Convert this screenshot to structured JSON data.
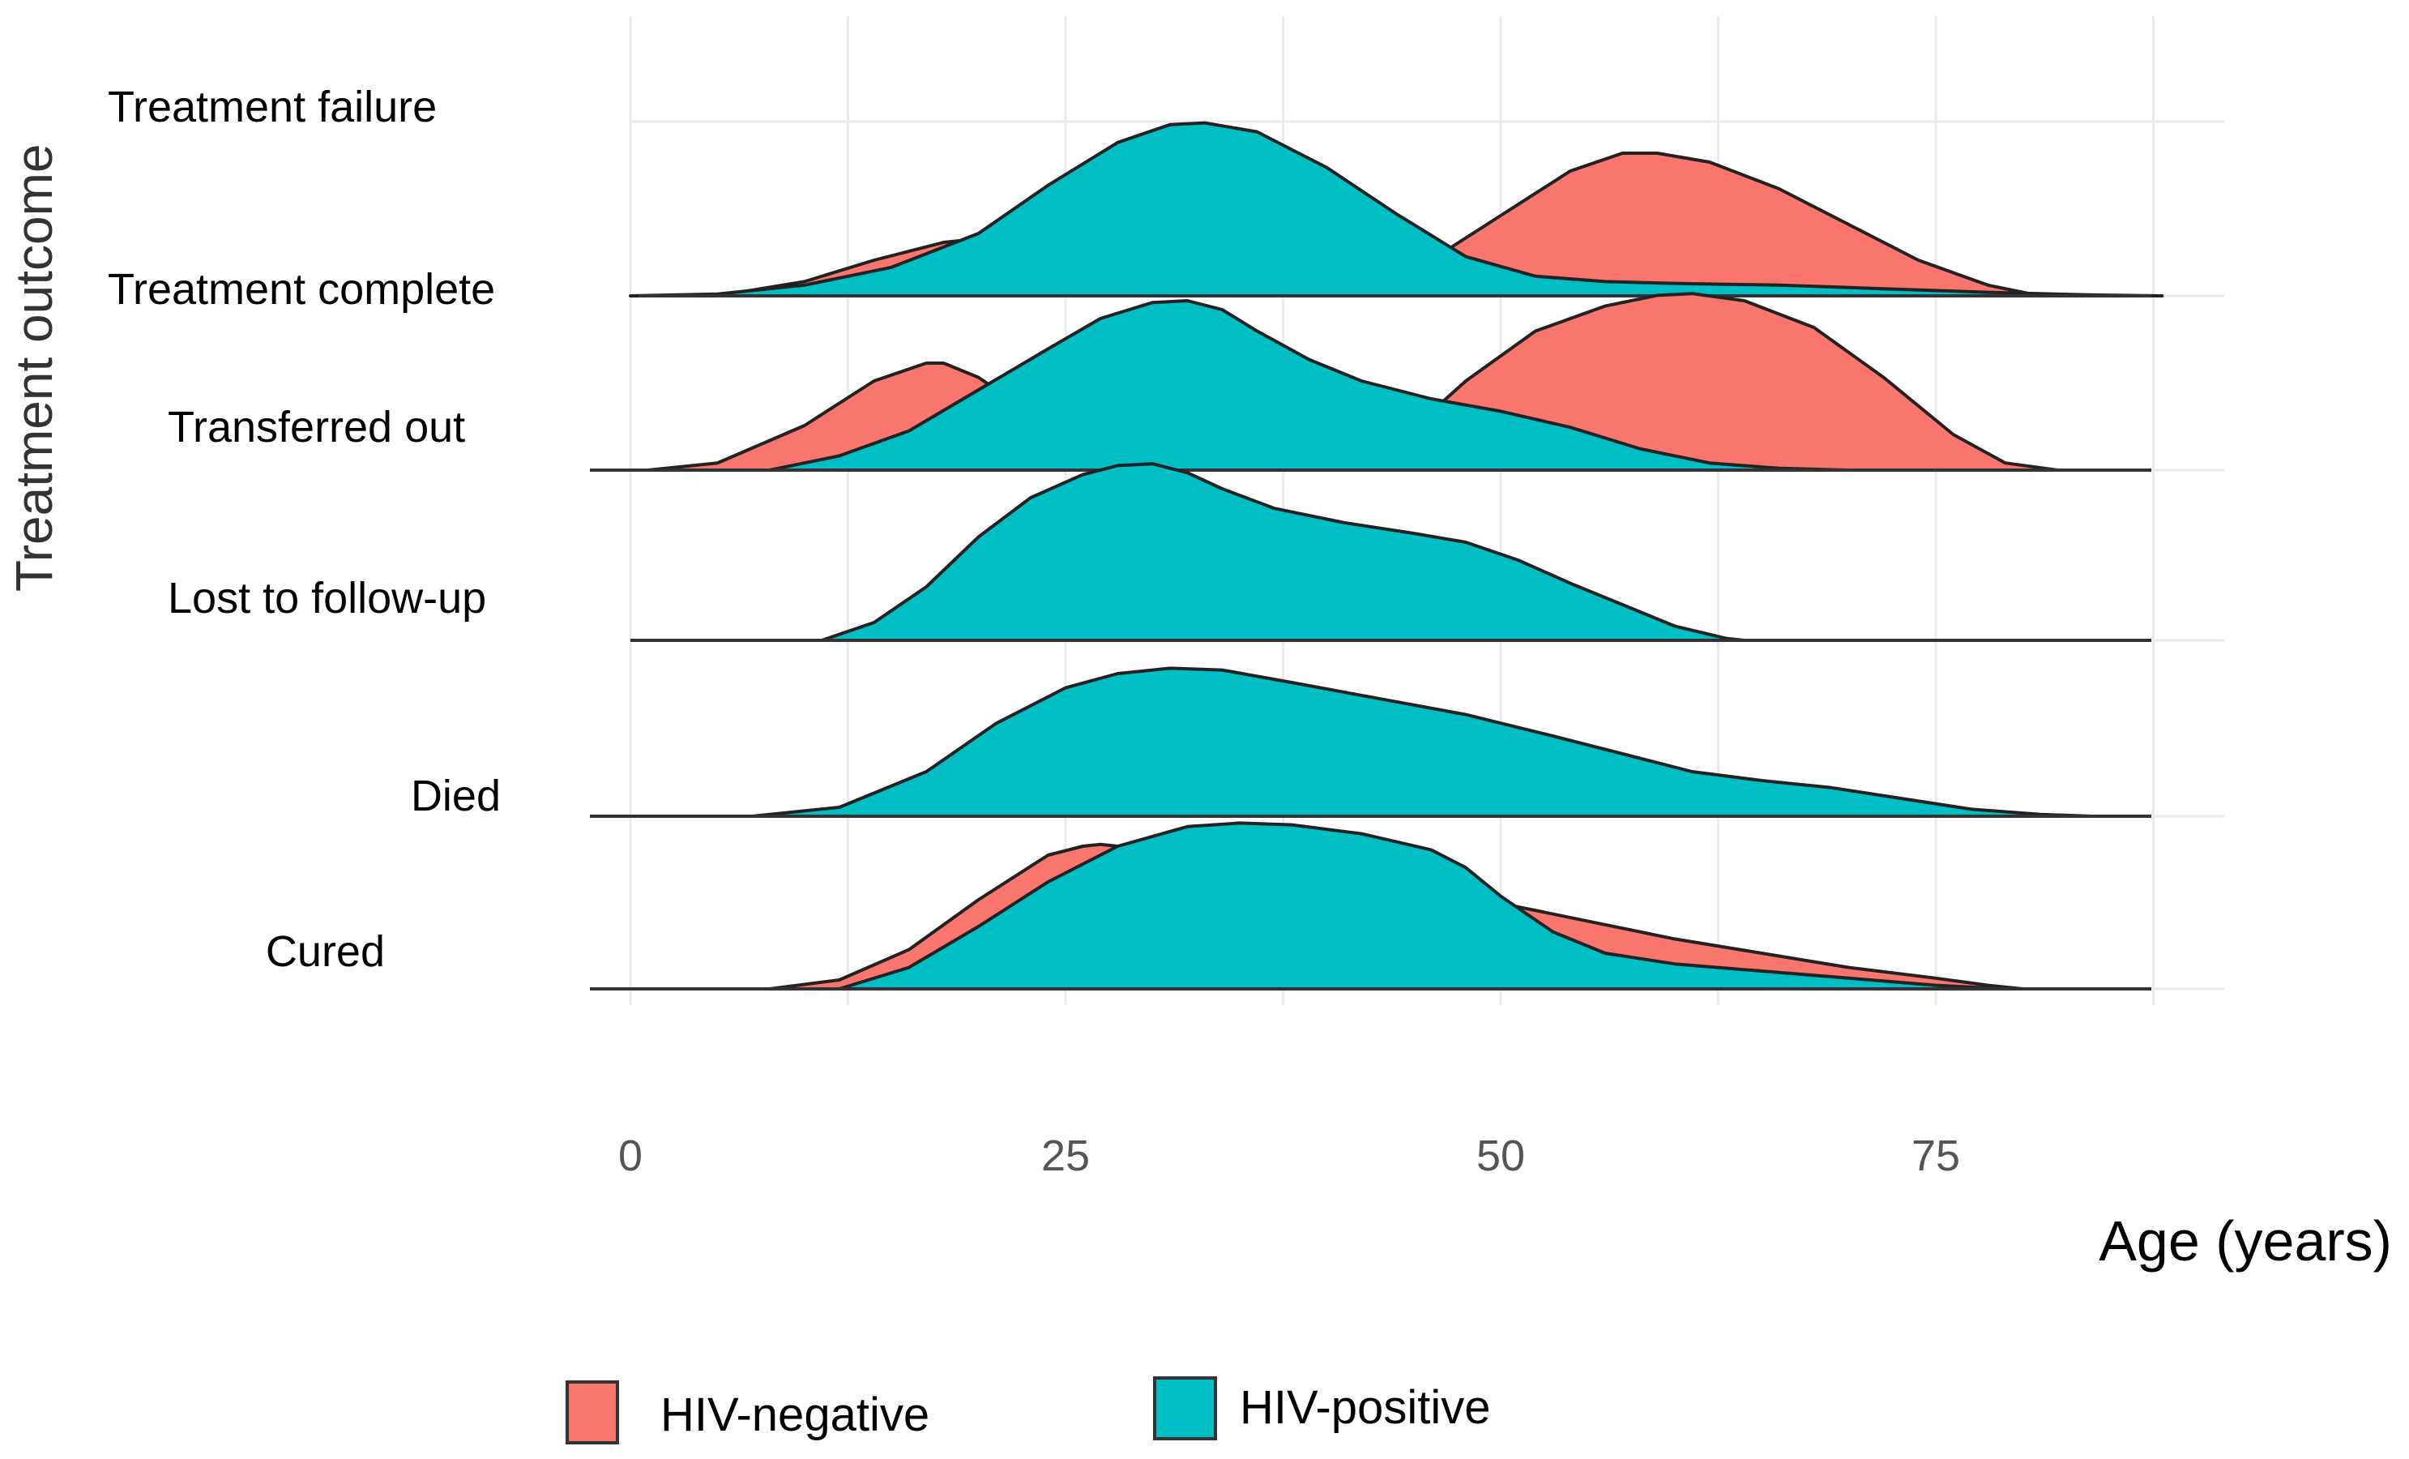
{
  "chart_data": {
    "type": "ridgeline",
    "title": "",
    "xlabel": "Age (years)",
    "ylabel": "Treatment outcome",
    "xlim": [
      0,
      92
    ],
    "xticks": [
      "0",
      "25",
      "50",
      "75"
    ],
    "xtick_values": [
      0,
      25,
      50,
      75
    ],
    "grid": true,
    "legend_position": "bottom",
    "categories": [
      "Cured",
      "Died",
      "Lost to follow-up",
      "Transferred out",
      "Treatment complete",
      "Treatment failure"
    ],
    "series": [
      {
        "name": "HIV-negative",
        "color": "#F8766D",
        "ridges": {
          "Cured": {
            "x": [
              8,
              12,
              16,
              20,
              24,
              26,
              27,
              28,
              30,
              32,
              35,
              40,
              45,
              50,
              55,
              60,
              65,
              70,
              75,
              78,
              80,
              82
            ],
            "density": [
              0.0,
              0.05,
              0.22,
              0.5,
              0.75,
              0.8,
              0.81,
              0.8,
              0.68,
              0.58,
              0.62,
              0.65,
              0.6,
              0.48,
              0.38,
              0.28,
              0.2,
              0.12,
              0.06,
              0.02,
              0.0,
              0.0
            ]
          },
          "Transferred out": {
            "x": [
              1,
              5,
              10,
              14,
              17,
              18,
              20,
              23,
              27,
              32,
              38,
              44,
              48,
              52,
              56,
              59,
              61,
              64,
              68,
              72,
              76,
              79,
              82
            ],
            "density": [
              0.0,
              0.04,
              0.25,
              0.5,
              0.6,
              0.6,
              0.52,
              0.32,
              0.14,
              0.04,
              0.02,
              0.15,
              0.5,
              0.78,
              0.92,
              0.98,
              0.99,
              0.95,
              0.8,
              0.52,
              0.2,
              0.04,
              0.0
            ]
          },
          "Treatment complete": {
            "x": [
              5,
              10,
              14,
              18,
              21,
              24,
              27,
              30,
              34,
              38,
              42,
              46,
              50,
              54,
              57,
              59,
              62,
              66,
              70,
              74,
              78,
              81
            ],
            "density": [
              0.0,
              0.08,
              0.2,
              0.3,
              0.33,
              0.22,
              0.08,
              0.02,
              0.0,
              0.0,
              0.05,
              0.2,
              0.45,
              0.7,
              0.8,
              0.8,
              0.75,
              0.6,
              0.4,
              0.2,
              0.06,
              0.0
            ]
          }
        }
      },
      {
        "name": "HIV-positive",
        "color": "#00BFC4",
        "ridges": {
          "Cured": {
            "x": [
              12,
              16,
              20,
              24,
              28,
              32,
              35,
              38,
              42,
              46,
              48,
              50,
              53,
              56,
              60,
              65,
              70,
              75,
              79
            ],
            "density": [
              0.0,
              0.12,
              0.35,
              0.6,
              0.8,
              0.91,
              0.93,
              0.92,
              0.87,
              0.78,
              0.68,
              0.52,
              0.32,
              0.2,
              0.14,
              0.1,
              0.06,
              0.02,
              0.0
            ]
          },
          "Died": {
            "x": [
              7,
              12,
              17,
              21,
              25,
              28,
              31,
              34,
              38,
              43,
              48,
              53,
              57,
              61,
              65,
              69,
              73,
              77,
              81,
              84
            ],
            "density": [
              0.0,
              0.05,
              0.25,
              0.52,
              0.72,
              0.8,
              0.83,
              0.82,
              0.75,
              0.66,
              0.57,
              0.45,
              0.35,
              0.25,
              0.2,
              0.16,
              0.1,
              0.04,
              0.01,
              0.0
            ]
          },
          "Lost to follow-up": {
            "x": [
              11,
              14,
              17,
              20,
              23,
              26,
              28,
              30,
              32,
              34,
              37,
              41,
              45,
              48,
              51,
              54,
              57,
              60,
              63,
              64
            ],
            "density": [
              0.0,
              0.1,
              0.3,
              0.58,
              0.8,
              0.93,
              0.98,
              0.99,
              0.94,
              0.85,
              0.74,
              0.66,
              0.6,
              0.55,
              0.45,
              0.32,
              0.2,
              0.08,
              0.01,
              0.0
            ]
          },
          "Transferred out": {
            "x": [
              8,
              12,
              16,
              20,
              24,
              27,
              30,
              32,
              34,
              36,
              39,
              42,
              46,
              50,
              54,
              58,
              62,
              66,
              70
            ],
            "density": [
              0.0,
              0.08,
              0.22,
              0.45,
              0.68,
              0.85,
              0.94,
              0.95,
              0.9,
              0.78,
              0.62,
              0.5,
              0.4,
              0.33,
              0.24,
              0.12,
              0.04,
              0.01,
              0.0
            ]
          },
          "Treatment complete": {
            "x": [
              0,
              5,
              10,
              15,
              20,
              24,
              28,
              31,
              33,
              36,
              40,
              44,
              48,
              52,
              56,
              60,
              66,
              72,
              78,
              84,
              88
            ],
            "density": [
              0.0,
              0.01,
              0.06,
              0.16,
              0.35,
              0.62,
              0.86,
              0.96,
              0.97,
              0.92,
              0.72,
              0.46,
              0.22,
              0.11,
              0.08,
              0.07,
              0.06,
              0.04,
              0.02,
              0.005,
              0.0
            ]
          }
        }
      }
    ]
  },
  "legend": {
    "items": [
      {
        "label": "HIV-negative",
        "color": "#F8766D"
      },
      {
        "label": "HIV-positive",
        "color": "#00BFC4"
      }
    ]
  }
}
